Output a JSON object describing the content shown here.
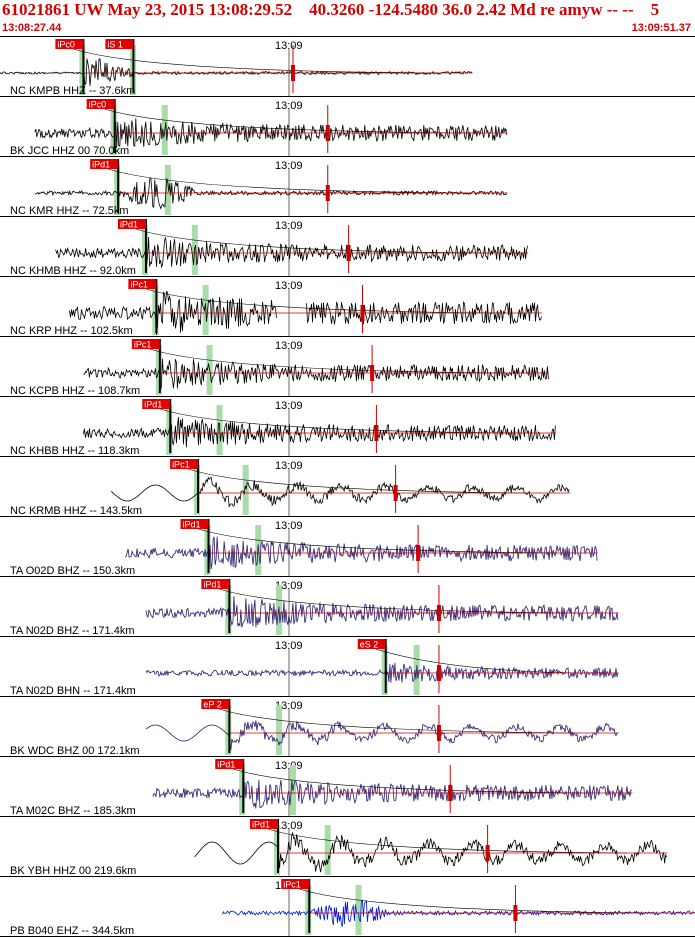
{
  "header": {
    "title": "61021861 UW May 23, 2015 13:08:29.52    40.3260 -124.5480 36.0 2.42 Md re amyw -- --    5",
    "time_start": "13:08:27.44",
    "time_end": "13:09:51.37"
  },
  "colors": {
    "header_text": "#d40000",
    "pick_box": "#e00000",
    "pick_text": "#ffffff",
    "marker_green": "#a8dca8",
    "trace_black": "#000000",
    "trace_purple": "#2a1a6e",
    "trace_blue": "#0018d8",
    "red_line": "#cc0000"
  },
  "tick_label": "13:09",
  "traces": [
    {
      "label": "NC KMPB HHZ -- 37.6km",
      "picks": [
        "iPc0",
        "iS 1"
      ],
      "color": "black",
      "start": 0.0,
      "end": 0.68,
      "arrival": 0.12,
      "amp": "high",
      "style": "spike"
    },
    {
      "label": "BK JCC HHZ 00 70.0km",
      "picks": [
        "iPc0"
      ],
      "color": "black",
      "start": 0.05,
      "end": 0.73,
      "arrival": 0.165,
      "amp": "med",
      "style": "noise"
    },
    {
      "label": "NC KMR HHZ -- 72.5km",
      "picks": [
        "iPd1"
      ],
      "color": "black",
      "start": 0.05,
      "end": 0.73,
      "arrival": 0.17,
      "amp": "low",
      "style": "burst"
    },
    {
      "label": "NC KHMB HHZ -- 92.0km",
      "picks": [
        "iPd1"
      ],
      "color": "black",
      "start": 0.08,
      "end": 0.76,
      "arrival": 0.21,
      "amp": "med",
      "style": "noise"
    },
    {
      "label": "NC KRP HHZ -- 102.5km",
      "picks": [
        "iPc1"
      ],
      "color": "black",
      "start": 0.1,
      "end": 0.78,
      "arrival": 0.225,
      "amp": "high",
      "style": "gap"
    },
    {
      "label": "NC KCPB HHZ -- 108.7km",
      "picks": [
        "iPc1"
      ],
      "color": "black",
      "start": 0.12,
      "end": 0.79,
      "arrival": 0.23,
      "amp": "med",
      "style": "noise"
    },
    {
      "label": "NC KHBB HHZ -- 118.3km",
      "picks": [
        "iPd1"
      ],
      "color": "black",
      "start": 0.12,
      "end": 0.8,
      "arrival": 0.245,
      "amp": "med",
      "style": "noise"
    },
    {
      "label": "NC KRMB HHZ -- 143.5km",
      "picks": [
        "iPc1"
      ],
      "color": "black",
      "start": 0.16,
      "end": 0.82,
      "arrival": 0.285,
      "amp": "med",
      "style": "wave"
    },
    {
      "label": "TA O02D BHZ -- 150.3km",
      "picks": [
        "iPd1"
      ],
      "color": "purple",
      "start": 0.18,
      "end": 0.86,
      "arrival": 0.3,
      "amp": "med",
      "style": "noise"
    },
    {
      "label": "TA N02D BHZ -- 171.4km",
      "picks": [
        "iPd1"
      ],
      "color": "purple",
      "start": 0.21,
      "end": 0.89,
      "arrival": 0.33,
      "amp": "med",
      "style": "noise"
    },
    {
      "label": "TA N02D BHN -- 171.4km",
      "picks": [
        "eS 2"
      ],
      "color": "purple",
      "start": 0.21,
      "end": 0.89,
      "arrival": 0.555,
      "amp": "low",
      "style": "noise"
    },
    {
      "label": "BK WDC BHZ 00 172.1km",
      "picks": [
        "eP 2"
      ],
      "color": "purple",
      "start": 0.21,
      "end": 0.89,
      "arrival": 0.33,
      "amp": "med",
      "style": "wave"
    },
    {
      "label": "TA M02C BHZ -- 185.3km",
      "picks": [
        "iPd1"
      ],
      "color": "purple",
      "start": 0.22,
      "end": 0.91,
      "arrival": 0.35,
      "amp": "med",
      "style": "noise"
    },
    {
      "label": "BK YBH HHZ 00 219.6km",
      "picks": [
        "iPd1"
      ],
      "color": "black",
      "start": 0.28,
      "end": 0.96,
      "arrival": 0.4,
      "amp": "high",
      "style": "wave"
    },
    {
      "label": "PB B040 EHZ -- 344.5km",
      "picks": [
        "iPc1"
      ],
      "color": "blue",
      "start": 0.32,
      "end": 1.0,
      "arrival": 0.445,
      "amp": "low",
      "style": "burst"
    }
  ]
}
